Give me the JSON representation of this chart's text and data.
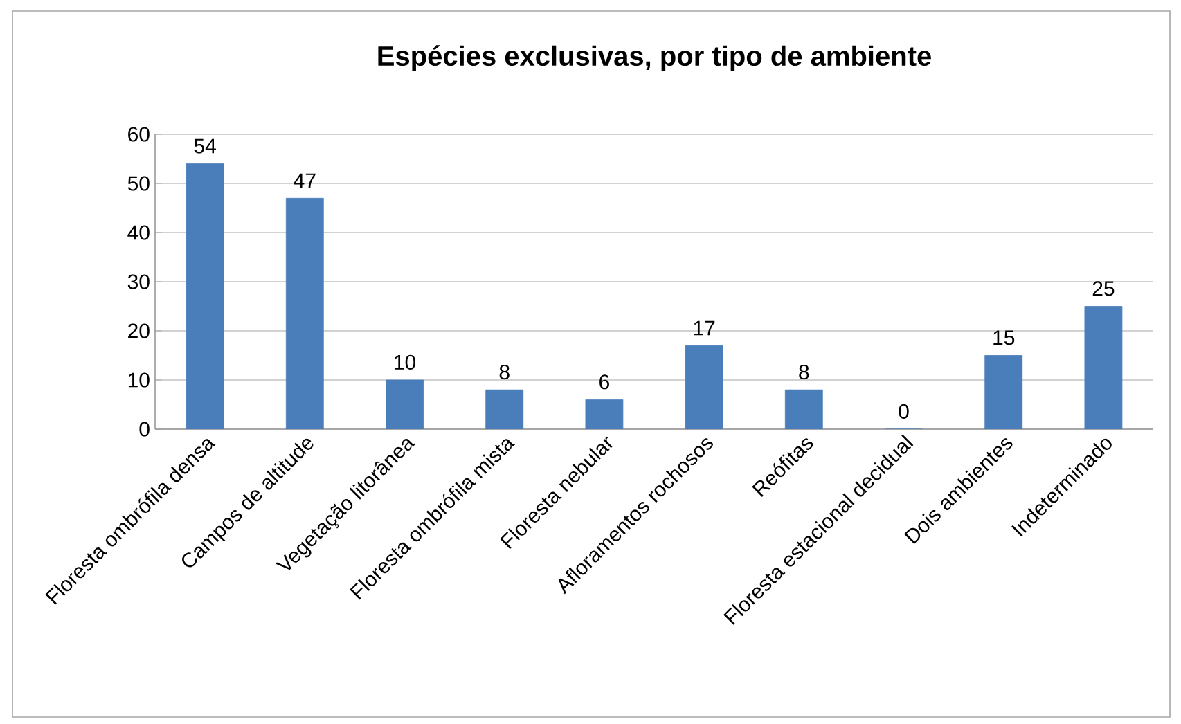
{
  "chart_data": {
    "type": "bar",
    "title": "Espécies exclusivas, por tipo de ambiente",
    "categories": [
      "Floresta ombrófila densa",
      "Campos de altitude",
      "Vegetação litorânea",
      "Floresta ombrófila mista",
      "Floresta nebular",
      "Afloramentos rochosos",
      "Reófitas",
      "Floresta estacional decidual",
      "Dois ambientes",
      "Indeterminado"
    ],
    "values": [
      54,
      47,
      10,
      8,
      6,
      17,
      8,
      0,
      15,
      25
    ],
    "color": "#4a7ebb",
    "ylim": [
      0,
      60
    ],
    "yticks": [
      0,
      10,
      20,
      30,
      40,
      50,
      60
    ],
    "grid": "y",
    "data_labels": true
  }
}
